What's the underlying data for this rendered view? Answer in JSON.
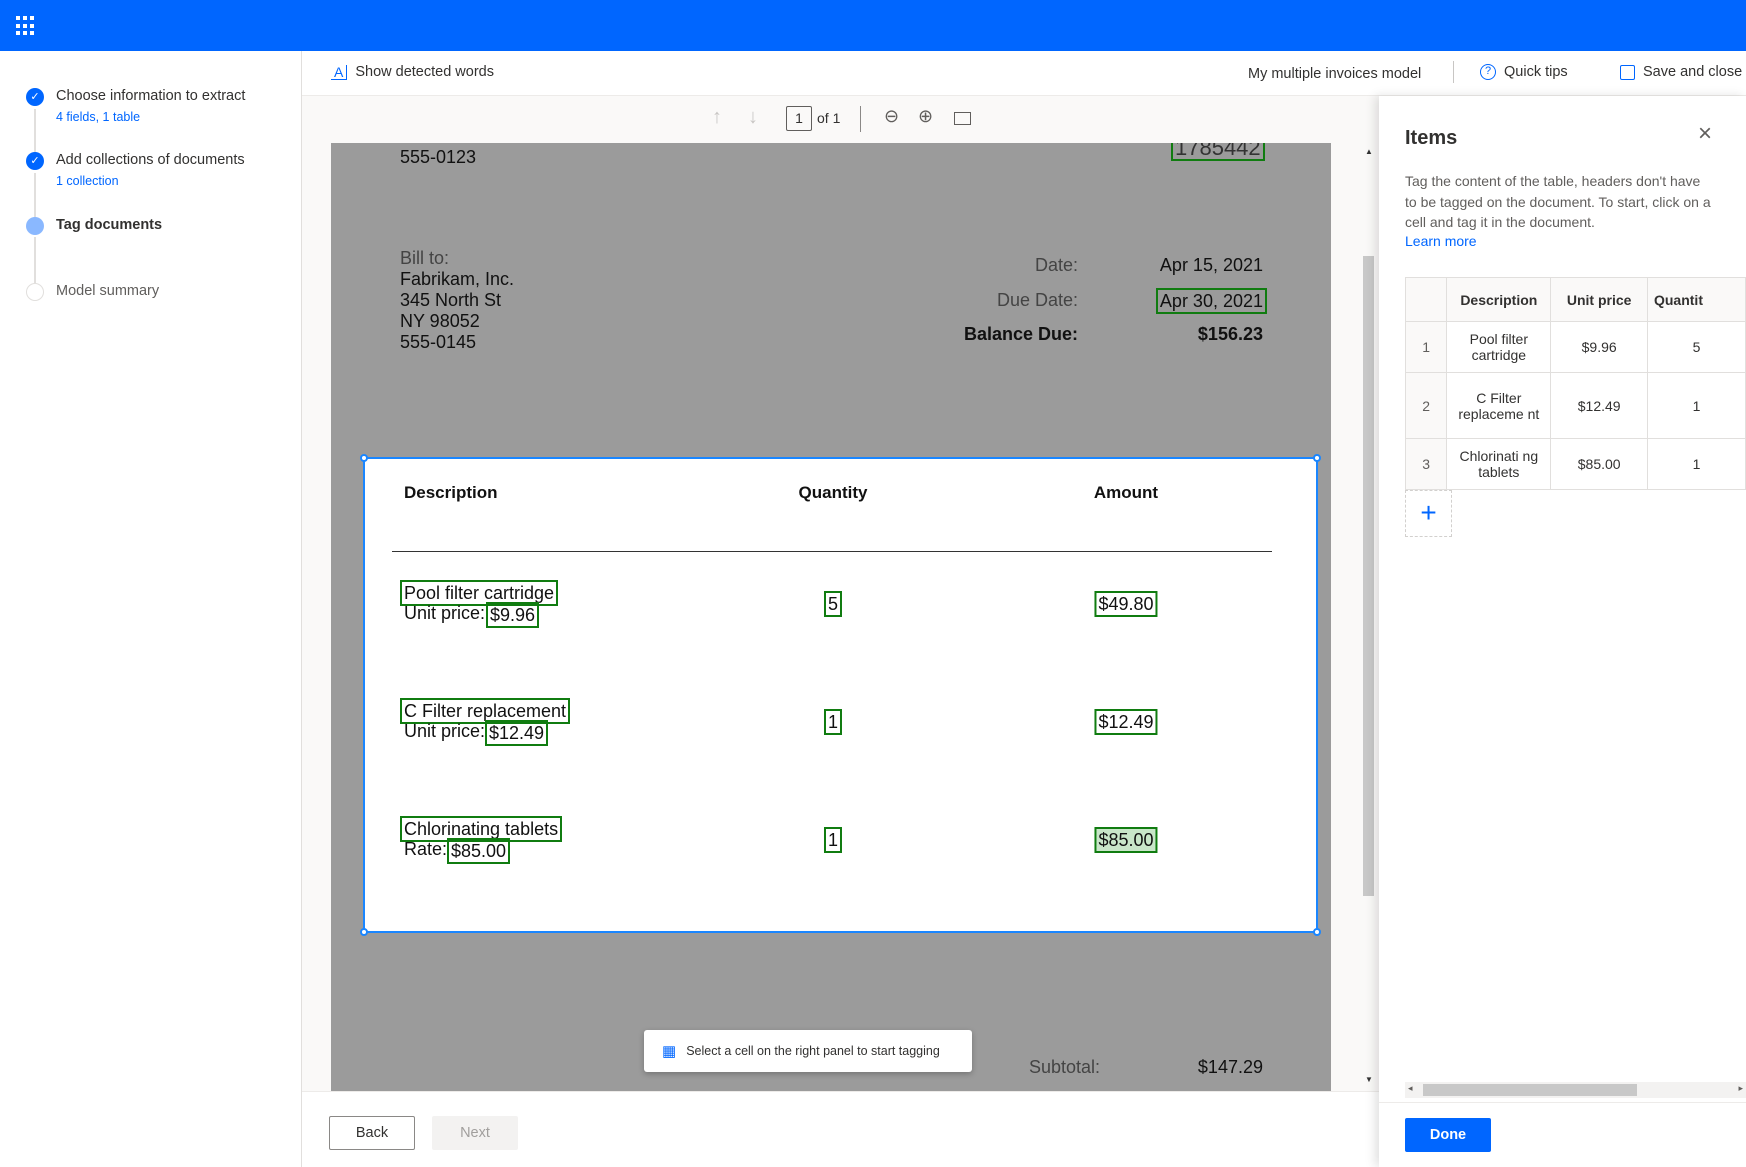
{
  "steps": [
    {
      "title": "Choose information to extract",
      "subtitle": "4 fields, 1 table",
      "state": "done"
    },
    {
      "title": "Add collections of documents",
      "subtitle": "1 collection",
      "state": "done"
    },
    {
      "title": "Tag documents",
      "subtitle": "",
      "state": "current"
    },
    {
      "title": "Model summary",
      "subtitle": "",
      "state": "pending"
    }
  ],
  "toolbar": {
    "show_words": "Show detected words",
    "model_name": "My multiple invoices model",
    "quick_tips": "Quick tips",
    "save_close": "Save and close"
  },
  "pagenav": {
    "page": "1",
    "of": "of 1"
  },
  "doc": {
    "phone_top": "555-0123",
    "invoice_no": "1785442",
    "bill_to": "Bill to:",
    "company": "Fabrikam, Inc.",
    "street": "345 North St",
    "city": "NY 98052",
    "phone": "555-0145",
    "date_label": "Date:",
    "date": "Apr 15, 2021",
    "due_label": "Due Date:",
    "due": "Apr 30, 2021",
    "balance_label": "Balance Due:",
    "balance": "$156.23",
    "headers": {
      "description": "Description",
      "quantity": "Quantity",
      "amount": "Amount"
    },
    "rows": [
      {
        "desc": "Pool filter cartridge",
        "price_label": "Unit price:",
        "price": "$9.96",
        "qty": "5",
        "amount": "$49.80"
      },
      {
        "desc": "C Filter replacement",
        "price_label": "Unit price:",
        "price": "$12.49",
        "qty": "1",
        "amount": "$12.49"
      },
      {
        "desc": "Chlorinating tablets",
        "price_label": "Rate:",
        "price": "$85.00",
        "qty": "1",
        "amount": "$85.00"
      }
    ],
    "subtotal_label": "Subtotal:",
    "subtotal": "$147.29"
  },
  "toast": "Select a cell on the right panel to start tagging",
  "footer": {
    "back": "Back",
    "next": "Next"
  },
  "panel": {
    "title": "Items",
    "description": "Tag the content of the table, headers don't have to be tagged on the document. To start, click on a cell and tag it in the document.",
    "learn_more": "Learn more",
    "columns": [
      "Description",
      "Unit price",
      "Quantit"
    ],
    "rows": [
      {
        "n": "1",
        "description": "Pool filter cartridge",
        "unit_price": "$9.96",
        "quantity": "5"
      },
      {
        "n": "2",
        "description": "C Filter replaceme nt",
        "unit_price": "$12.49",
        "quantity": "1"
      },
      {
        "n": "3",
        "description": "Chlorinati ng tablets",
        "unit_price": "$85.00",
        "quantity": "1"
      }
    ],
    "done": "Done"
  },
  "colors": {
    "brand": "#0066ff",
    "tag": "#107c10",
    "selection": "#1a86ff"
  }
}
